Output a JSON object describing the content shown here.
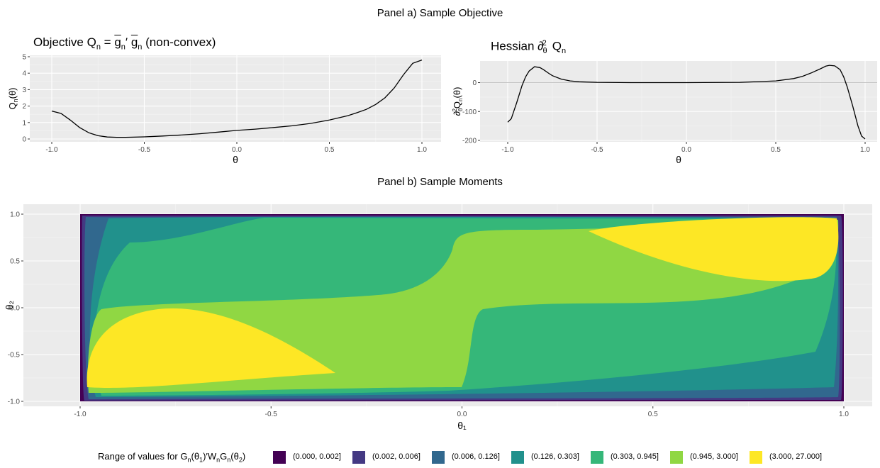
{
  "panel_a_title": "Panel a) Sample Objective",
  "panel_b_title": "Panel b) Sample Moments",
  "chart_data": [
    {
      "type": "line",
      "title": "Objective Q_n = g_n′ g_n (non-convex)",
      "xlabel": "θ",
      "ylabel": "Q_n(θ)",
      "xlim": [
        -1.0,
        1.0
      ],
      "ylim": [
        0,
        5
      ],
      "x_ticks": [
        "-1.0",
        "-0.5",
        "0.0",
        "0.5",
        "1.0"
      ],
      "y_ticks": [
        "0",
        "1",
        "2",
        "3",
        "4",
        "5"
      ],
      "grid": true,
      "x": [
        -1.0,
        -0.95,
        -0.9,
        -0.85,
        -0.8,
        -0.75,
        -0.7,
        -0.65,
        -0.6,
        -0.5,
        -0.4,
        -0.3,
        -0.2,
        -0.1,
        0.0,
        0.1,
        0.2,
        0.3,
        0.4,
        0.5,
        0.6,
        0.65,
        0.7,
        0.75,
        0.8,
        0.85,
        0.9,
        0.95,
        1.0
      ],
      "y": [
        1.7,
        1.55,
        1.15,
        0.7,
        0.38,
        0.2,
        0.12,
        0.1,
        0.1,
        0.13,
        0.18,
        0.24,
        0.32,
        0.42,
        0.52,
        0.6,
        0.7,
        0.8,
        0.95,
        1.15,
        1.42,
        1.6,
        1.8,
        2.1,
        2.5,
        3.1,
        3.9,
        4.6,
        4.8
      ]
    },
    {
      "type": "line",
      "title": "Hessian ∂θ²Q_n",
      "xlabel": "θ",
      "ylabel": "∂θ²Q_n(θ)",
      "xlim": [
        -1.0,
        1.0
      ],
      "ylim": [
        -200,
        70
      ],
      "x_ticks": [
        "-1.0",
        "-0.5",
        "0.0",
        "0.5",
        "1.0"
      ],
      "y_ticks": [
        "-200",
        "-100",
        "0"
      ],
      "grid": true,
      "x": [
        -1.0,
        -0.98,
        -0.95,
        -0.92,
        -0.9,
        -0.88,
        -0.85,
        -0.82,
        -0.8,
        -0.77,
        -0.75,
        -0.7,
        -0.65,
        -0.6,
        -0.5,
        -0.3,
        0.0,
        0.3,
        0.5,
        0.6,
        0.65,
        0.7,
        0.75,
        0.78,
        0.8,
        0.83,
        0.86,
        0.88,
        0.9,
        0.93,
        0.96,
        0.98,
        1.0
      ],
      "y": [
        -137,
        -125,
        -70,
        -10,
        20,
        40,
        55,
        52,
        45,
        32,
        24,
        12,
        6,
        3,
        1,
        0,
        0,
        1,
        6,
        14,
        22,
        34,
        48,
        57,
        60,
        58,
        45,
        20,
        -15,
        -80,
        -150,
        -185,
        -195
      ]
    },
    {
      "type": "heatmap",
      "title": "",
      "xlabel": "θ₁",
      "ylabel": "θ₂",
      "xlim": [
        -1.0,
        1.0
      ],
      "ylim": [
        -1.0,
        1.0
      ],
      "x_ticks": [
        "-1.0",
        "-0.5",
        "0.0",
        "0.5",
        "1.0"
      ],
      "y_ticks": [
        "-1.0",
        "-0.5",
        "0.0",
        "0.5",
        "1.0"
      ],
      "legend_title": "Range of values for G_n(θ₁)′W_nG_n(θ₂)",
      "legend_position": "bottom",
      "bins": [
        "(0.000, 0.002]",
        "(0.002, 0.006]",
        "(0.006, 0.126]",
        "(0.126, 0.303]",
        "(0.303, 0.945]",
        "(0.945, 3.000]",
        "(3.000, 27.000]"
      ],
      "colors": [
        "#440154",
        "#443983",
        "#31688e",
        "#21918c",
        "#35b779",
        "#90d743",
        "#fde725"
      ]
    }
  ]
}
